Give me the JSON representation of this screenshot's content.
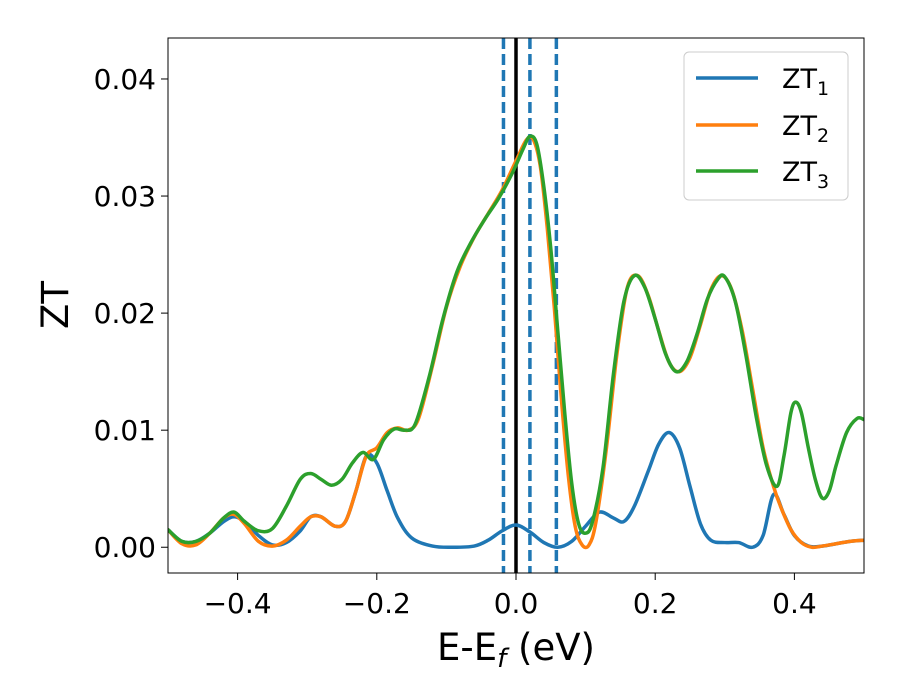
{
  "chart_data": {
    "type": "line",
    "xlabel": {
      "main": "E-E",
      "sub": "f",
      "suffix": " (eV)"
    },
    "ylabel": "ZT",
    "xlim": [
      -0.5,
      0.5
    ],
    "ylim": [
      -0.0022,
      0.0435
    ],
    "xticks": [
      -0.4,
      -0.2,
      0.0,
      0.2,
      0.4
    ],
    "xtick_labels": [
      "−0.4",
      "−0.2",
      "0.0",
      "0.2",
      "0.4"
    ],
    "yticks": [
      0.0,
      0.01,
      0.02,
      0.03,
      0.04
    ],
    "ytick_labels": [
      "0.00",
      "0.01",
      "0.02",
      "0.03",
      "0.04"
    ],
    "grid": false,
    "legend_position": "top-right",
    "vlines": [
      {
        "x": 0.0,
        "style": "solid",
        "color": "#000000"
      },
      {
        "x": -0.018,
        "style": "dashed",
        "color": "#1f77b4"
      },
      {
        "x": 0.02,
        "style": "dashed",
        "color": "#1f77b4"
      },
      {
        "x": 0.058,
        "style": "dashed",
        "color": "#1f77b4"
      }
    ],
    "series": [
      {
        "name": "ZT",
        "subscript": "1",
        "color": "#1f77b4",
        "points": [
          [
            -0.5,
            0.0015
          ],
          [
            -0.48,
            0.0005
          ],
          [
            -0.46,
            0.0005
          ],
          [
            -0.44,
            0.0012
          ],
          [
            -0.42,
            0.0022
          ],
          [
            -0.405,
            0.0026
          ],
          [
            -0.39,
            0.0022
          ],
          [
            -0.37,
            0.001
          ],
          [
            -0.35,
            0.0002
          ],
          [
            -0.33,
            0.0004
          ],
          [
            -0.31,
            0.0014
          ],
          [
            -0.295,
            0.0026
          ],
          [
            -0.28,
            0.0026
          ],
          [
            -0.26,
            0.0018
          ],
          [
            -0.245,
            0.0022
          ],
          [
            -0.23,
            0.0048
          ],
          [
            -0.215,
            0.0078
          ],
          [
            -0.2,
            0.0072
          ],
          [
            -0.185,
            0.0048
          ],
          [
            -0.17,
            0.0025
          ],
          [
            -0.15,
            0.0008
          ],
          [
            -0.12,
            0.0001
          ],
          [
            -0.09,
            0.0
          ],
          [
            -0.06,
            0.0001
          ],
          [
            -0.04,
            0.0006
          ],
          [
            -0.02,
            0.0014
          ],
          [
            0.0,
            0.0019
          ],
          [
            0.02,
            0.0013
          ],
          [
            0.04,
            0.0004
          ],
          [
            0.06,
            0.0
          ],
          [
            0.08,
            0.0005
          ],
          [
            0.1,
            0.0018
          ],
          [
            0.12,
            0.003
          ],
          [
            0.14,
            0.0025
          ],
          [
            0.155,
            0.0022
          ],
          [
            0.17,
            0.0035
          ],
          [
            0.19,
            0.0065
          ],
          [
            0.205,
            0.0088
          ],
          [
            0.22,
            0.0098
          ],
          [
            0.235,
            0.0085
          ],
          [
            0.25,
            0.0052
          ],
          [
            0.265,
            0.002
          ],
          [
            0.28,
            0.0006
          ],
          [
            0.3,
            0.0004
          ],
          [
            0.32,
            0.0004
          ],
          [
            0.34,
            0.0
          ],
          [
            0.355,
            0.001
          ],
          [
            0.37,
            0.0045
          ],
          [
            0.385,
            0.0028
          ],
          [
            0.4,
            0.001
          ],
          [
            0.42,
            0.0001
          ],
          [
            0.44,
            0.0001
          ],
          [
            0.46,
            0.0003
          ],
          [
            0.48,
            0.0005
          ],
          [
            0.5,
            0.0006
          ]
        ]
      },
      {
        "name": "ZT",
        "subscript": "2",
        "color": "#ff7f0e",
        "points": [
          [
            -0.5,
            0.0015
          ],
          [
            -0.48,
            0.0003
          ],
          [
            -0.46,
            0.0002
          ],
          [
            -0.44,
            0.0012
          ],
          [
            -0.42,
            0.0025
          ],
          [
            -0.405,
            0.0028
          ],
          [
            -0.39,
            0.002
          ],
          [
            -0.37,
            0.0005
          ],
          [
            -0.35,
            0.0001
          ],
          [
            -0.33,
            0.0006
          ],
          [
            -0.31,
            0.0018
          ],
          [
            -0.295,
            0.0026
          ],
          [
            -0.28,
            0.0026
          ],
          [
            -0.26,
            0.0018
          ],
          [
            -0.245,
            0.0022
          ],
          [
            -0.23,
            0.0048
          ],
          [
            -0.215,
            0.0078
          ],
          [
            -0.2,
            0.0085
          ],
          [
            -0.185,
            0.0098
          ],
          [
            -0.17,
            0.0102
          ],
          [
            -0.155,
            0.01
          ],
          [
            -0.14,
            0.011
          ],
          [
            -0.12,
            0.0155
          ],
          [
            -0.1,
            0.0205
          ],
          [
            -0.08,
            0.024
          ],
          [
            -0.06,
            0.0265
          ],
          [
            -0.04,
            0.0285
          ],
          [
            -0.02,
            0.0305
          ],
          [
            0.0,
            0.033
          ],
          [
            0.015,
            0.0348
          ],
          [
            0.025,
            0.0348
          ],
          [
            0.035,
            0.0325
          ],
          [
            0.045,
            0.0272
          ],
          [
            0.055,
            0.0205
          ],
          [
            0.065,
            0.0128
          ],
          [
            0.075,
            0.0062
          ],
          [
            0.085,
            0.0018
          ],
          [
            0.095,
            0.0002
          ],
          [
            0.105,
            0.0002
          ],
          [
            0.115,
            0.0022
          ],
          [
            0.13,
            0.0085
          ],
          [
            0.145,
            0.0165
          ],
          [
            0.16,
            0.0222
          ],
          [
            0.175,
            0.0232
          ],
          [
            0.19,
            0.0215
          ],
          [
            0.205,
            0.0185
          ],
          [
            0.22,
            0.0158
          ],
          [
            0.235,
            0.015
          ],
          [
            0.25,
            0.0162
          ],
          [
            0.265,
            0.019
          ],
          [
            0.28,
            0.022
          ],
          [
            0.295,
            0.0232
          ],
          [
            0.31,
            0.022
          ],
          [
            0.325,
            0.0185
          ],
          [
            0.34,
            0.0135
          ],
          [
            0.355,
            0.0085
          ],
          [
            0.37,
            0.0052
          ],
          [
            0.38,
            0.0035
          ],
          [
            0.395,
            0.0015
          ],
          [
            0.41,
            0.0004
          ],
          [
            0.425,
            0.0
          ],
          [
            0.44,
            0.0001
          ],
          [
            0.46,
            0.0003
          ],
          [
            0.48,
            0.0005
          ],
          [
            0.5,
            0.0006
          ]
        ]
      },
      {
        "name": "ZT",
        "subscript": "3",
        "color": "#2ca02c",
        "points": [
          [
            -0.5,
            0.0015
          ],
          [
            -0.48,
            0.0005
          ],
          [
            -0.46,
            0.0005
          ],
          [
            -0.44,
            0.0012
          ],
          [
            -0.42,
            0.0025
          ],
          [
            -0.405,
            0.003
          ],
          [
            -0.39,
            0.0022
          ],
          [
            -0.37,
            0.0014
          ],
          [
            -0.35,
            0.0016
          ],
          [
            -0.33,
            0.0035
          ],
          [
            -0.31,
            0.0058
          ],
          [
            -0.295,
            0.0063
          ],
          [
            -0.28,
            0.0058
          ],
          [
            -0.265,
            0.0053
          ],
          [
            -0.25,
            0.0058
          ],
          [
            -0.235,
            0.0072
          ],
          [
            -0.22,
            0.0081
          ],
          [
            -0.205,
            0.0075
          ],
          [
            -0.19,
            0.0092
          ],
          [
            -0.175,
            0.0101
          ],
          [
            -0.16,
            0.01
          ],
          [
            -0.145,
            0.0105
          ],
          [
            -0.125,
            0.0145
          ],
          [
            -0.105,
            0.0195
          ],
          [
            -0.085,
            0.0235
          ],
          [
            -0.065,
            0.026
          ],
          [
            -0.045,
            0.028
          ],
          [
            -0.025,
            0.0298
          ],
          [
            -0.005,
            0.032
          ],
          [
            0.01,
            0.034
          ],
          [
            0.02,
            0.0351
          ],
          [
            0.03,
            0.0344
          ],
          [
            0.04,
            0.0308
          ],
          [
            0.05,
            0.0255
          ],
          [
            0.06,
            0.0185
          ],
          [
            0.07,
            0.0115
          ],
          [
            0.08,
            0.0055
          ],
          [
            0.09,
            0.002
          ],
          [
            0.1,
            0.0012
          ],
          [
            0.11,
            0.0022
          ],
          [
            0.125,
            0.0068
          ],
          [
            0.14,
            0.0148
          ],
          [
            0.155,
            0.021
          ],
          [
            0.17,
            0.0232
          ],
          [
            0.185,
            0.0222
          ],
          [
            0.2,
            0.0195
          ],
          [
            0.215,
            0.0165
          ],
          [
            0.23,
            0.015
          ],
          [
            0.245,
            0.0158
          ],
          [
            0.26,
            0.0182
          ],
          [
            0.275,
            0.0212
          ],
          [
            0.29,
            0.0229
          ],
          [
            0.3,
            0.0231
          ],
          [
            0.315,
            0.021
          ],
          [
            0.33,
            0.0165
          ],
          [
            0.345,
            0.0112
          ],
          [
            0.36,
            0.007
          ],
          [
            0.375,
            0.0052
          ],
          [
            0.385,
            0.0078
          ],
          [
            0.395,
            0.0115
          ],
          [
            0.402,
            0.0124
          ],
          [
            0.41,
            0.0115
          ],
          [
            0.42,
            0.0085
          ],
          [
            0.43,
            0.0058
          ],
          [
            0.44,
            0.0042
          ],
          [
            0.45,
            0.0048
          ],
          [
            0.46,
            0.007
          ],
          [
            0.475,
            0.0098
          ],
          [
            0.49,
            0.011
          ],
          [
            0.5,
            0.0109
          ]
        ]
      }
    ]
  }
}
